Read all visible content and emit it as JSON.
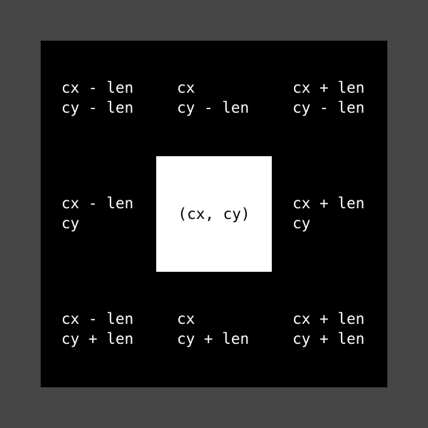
{
  "grid": {
    "cells": [
      {
        "lines": [
          "cx - len",
          "cy - len"
        ]
      },
      {
        "lines": [
          "cx",
          "cy - len"
        ]
      },
      {
        "lines": [
          "cx + len",
          "cy - len"
        ]
      },
      {
        "lines": [
          "cx - len",
          "cy"
        ]
      },
      {
        "lines": [
          "(cx, cy)"
        ]
      },
      {
        "lines": [
          "cx + len",
          "cy"
        ]
      },
      {
        "lines": [
          "cx - len",
          "cy + len"
        ]
      },
      {
        "lines": [
          "cx",
          "cy + len"
        ]
      },
      {
        "lines": [
          "cx + len",
          "cy + len"
        ]
      }
    ]
  }
}
